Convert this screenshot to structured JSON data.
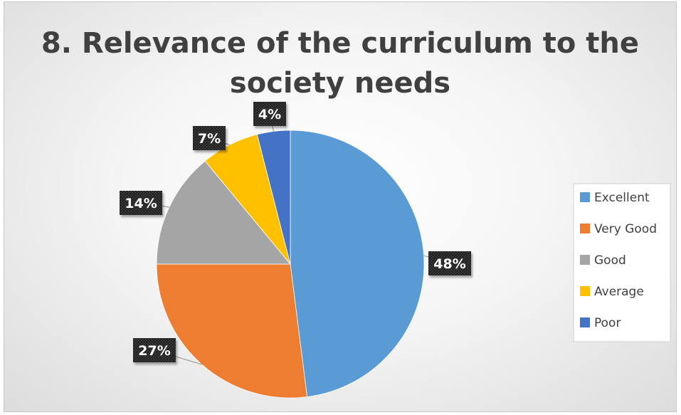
{
  "chart_data": {
    "type": "pie",
    "title": "8. Relevance of the curriculum to the society needs",
    "title_lines": [
      "8. Relevance of the curriculum to the",
      "society needs"
    ],
    "categories": [
      "Excellent",
      "Very Good",
      "Good",
      "Average",
      "Poor"
    ],
    "values": [
      48,
      27,
      14,
      7,
      4
    ],
    "labels": [
      "48%",
      "27%",
      "14%",
      "7%",
      "4%"
    ],
    "colors": [
      "#5B9BD5",
      "#ED7D31",
      "#A5A5A5",
      "#FFC000",
      "#4472C4"
    ],
    "legend_position": "right",
    "start_angle": "12 o'clock, clockwise"
  }
}
